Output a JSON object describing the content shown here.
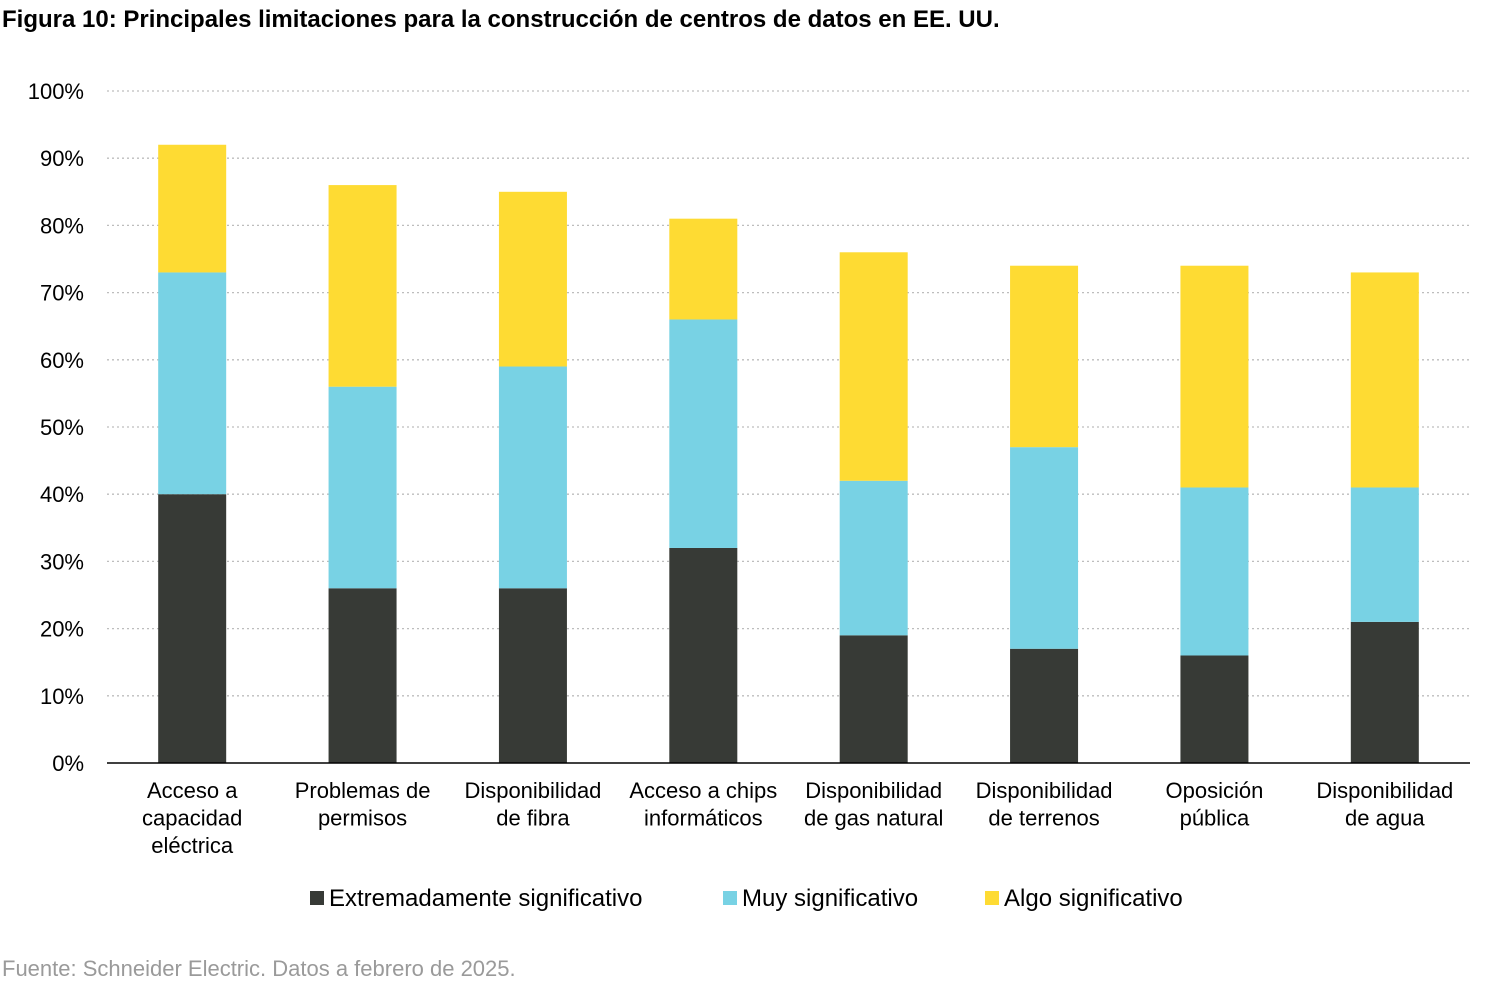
{
  "title": "Figura 10: Principales limitaciones para la construcción de centros de datos en EE. UU.",
  "source": "Fuente: Schneider Electric. Datos a febrero de 2025.",
  "chart_data": {
    "type": "bar",
    "stacked": true,
    "categories": [
      [
        "Acceso a",
        "capacidad",
        "eléctrica"
      ],
      [
        "Problemas de",
        "permisos"
      ],
      [
        "Disponibilidad",
        "de fibra"
      ],
      [
        "Acceso a chips",
        "informáticos"
      ],
      [
        "Disponibilidad",
        "de gas natural"
      ],
      [
        "Disponibilidad",
        "de terrenos"
      ],
      [
        "Oposición",
        "pública"
      ],
      [
        "Disponibilidad",
        "de agua"
      ]
    ],
    "series": [
      {
        "name": "Extremadamente significativo",
        "color": "#373a36",
        "values": [
          40,
          26,
          26,
          32,
          19,
          17,
          16,
          21
        ]
      },
      {
        "name": "Muy significativo",
        "color": "#78d2e4",
        "values": [
          33,
          30,
          33,
          34,
          23,
          30,
          25,
          20
        ]
      },
      {
        "name": "Algo significativo",
        "color": "#fedb33",
        "values": [
          19,
          30,
          26,
          15,
          34,
          27,
          33,
          32
        ]
      }
    ],
    "ylim": [
      0,
      100
    ],
    "yticks": [
      "0%",
      "10%",
      "20%",
      "30%",
      "40%",
      "50%",
      "60%",
      "70%",
      "80%",
      "90%",
      "100%"
    ],
    "grid": true,
    "legend_position": "bottom"
  }
}
